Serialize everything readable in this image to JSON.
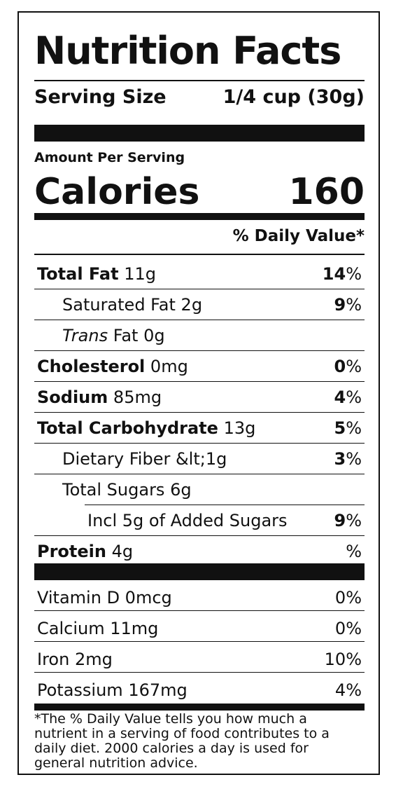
{
  "label": {
    "title": "Nutrition Facts",
    "serving_size_label": "Serving Size",
    "serving_size_value": "1/4 cup (30g)",
    "amount_per_serving": "Amount Per Serving",
    "calories_label": "Calories",
    "calories_value": "160",
    "daily_value_header": "% Daily Value*"
  },
  "nutrients": [
    {
      "name": "Total Fat",
      "amount": "11g",
      "dv_num": "14",
      "dv_sym": "%"
    },
    {
      "name": "Saturated Fat",
      "amount": "2g",
      "dv_num": "9",
      "dv_sym": "%"
    },
    {
      "name_italic": "Trans",
      "name_rest": "Fat 0g"
    },
    {
      "name": "Cholesterol",
      "amount": "0mg",
      "dv_num": "0",
      "dv_sym": "%"
    },
    {
      "name": "Sodium",
      "amount": "85mg",
      "dv_num": "4",
      "dv_sym": "%"
    },
    {
      "name": "Total Carbohydrate",
      "amount": "13g",
      "dv_num": "5",
      "dv_sym": "%"
    },
    {
      "name": "Dietary Fiber &lt;1g",
      "dv_num": "3",
      "dv_sym": "%"
    },
    {
      "name": "Total Sugars 6g"
    },
    {
      "name": "Incl 5g of Added Sugars",
      "dv_num": "9",
      "dv_sym": "%"
    },
    {
      "name": "Protein",
      "amount": "4g",
      "dv_sym": "%"
    }
  ],
  "vitamins": [
    {
      "name": "Vitamin D 0mcg",
      "dv": "0%"
    },
    {
      "name": "Calcium 11mg",
      "dv": "0%"
    },
    {
      "name": "Iron 2mg",
      "dv": "10%"
    },
    {
      "name": "Potassium 167mg",
      "dv": "4%"
    }
  ],
  "footnote": "*The % Daily Value tells you how much a nutrient in a serving of food contributes to a daily diet. 2000 calories a day is used for general nutrition advice."
}
